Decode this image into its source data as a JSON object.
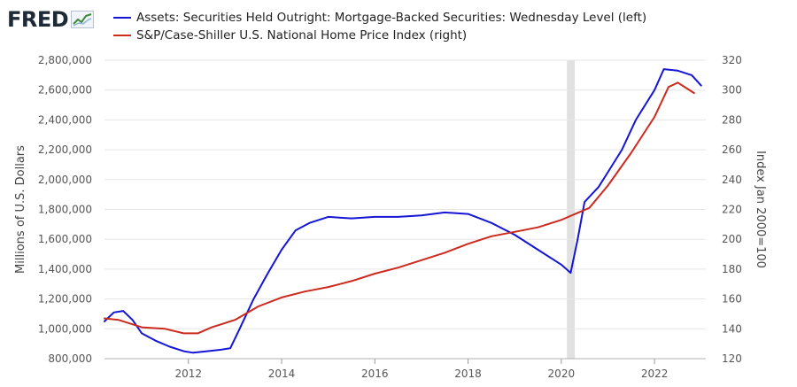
{
  "logo": {
    "text": "FRED",
    "icon": "chart-line-icon"
  },
  "chart_data": {
    "type": "line",
    "x_ticks": [
      "2012",
      "2014",
      "2016",
      "2018",
      "2020",
      "2022"
    ],
    "left_axis": {
      "label": "Millions of U.S. Dollars",
      "ylim": [
        800000,
        2800000
      ],
      "ticks": [
        "800,000",
        "1,000,000",
        "1,200,000",
        "1,400,000",
        "1,600,000",
        "1,800,000",
        "2,000,000",
        "2,200,000",
        "2,400,000",
        "2,600,000",
        "2,800,000"
      ]
    },
    "right_axis": {
      "label": "Index Jan 2000=100",
      "ylim": [
        120,
        320
      ],
      "ticks": [
        "120",
        "140",
        "160",
        "180",
        "200",
        "220",
        "240",
        "260",
        "280",
        "300",
        "320"
      ]
    },
    "xlim": [
      2010.2,
      2023.1
    ],
    "recession_shading": [
      2020.12,
      2020.29
    ],
    "grid": "horizontal",
    "series": [
      {
        "name": "Assets: Securities Held Outright: Mortgage-Backed Securities: Wednesday Level (left)",
        "axis": "left",
        "color": "#1515d6",
        "x": [
          2010.2,
          2010.4,
          2010.6,
          2010.8,
          2011.0,
          2011.3,
          2011.6,
          2011.9,
          2012.1,
          2012.4,
          2012.7,
          2012.9,
          2013.1,
          2013.4,
          2013.7,
          2014.0,
          2014.3,
          2014.6,
          2015.0,
          2015.5,
          2016.0,
          2016.5,
          2017.0,
          2017.5,
          2018.0,
          2018.5,
          2019.0,
          2019.5,
          2020.0,
          2020.2,
          2020.35,
          2020.5,
          2020.8,
          2021.0,
          2021.3,
          2021.6,
          2022.0,
          2022.2,
          2022.5,
          2022.8,
          2023.0
        ],
        "y": [
          1050000,
          1110000,
          1120000,
          1060000,
          970000,
          920000,
          880000,
          850000,
          840000,
          850000,
          860000,
          870000,
          1000000,
          1200000,
          1370000,
          1530000,
          1660000,
          1710000,
          1750000,
          1740000,
          1750000,
          1750000,
          1760000,
          1780000,
          1770000,
          1710000,
          1630000,
          1530000,
          1430000,
          1375000,
          1600000,
          1850000,
          1950000,
          2050000,
          2200000,
          2400000,
          2600000,
          2740000,
          2730000,
          2700000,
          2630000
        ]
      },
      {
        "name": "S&P/Case-Shiller U.S. National Home Price Index (right)",
        "axis": "right",
        "color": "#cc2a1e",
        "x": [
          2010.2,
          2010.5,
          2011.0,
          2011.5,
          2011.9,
          2012.2,
          2012.5,
          2013.0,
          2013.5,
          2014.0,
          2014.5,
          2015.0,
          2015.5,
          2016.0,
          2016.5,
          2017.0,
          2017.5,
          2018.0,
          2018.5,
          2019.0,
          2019.5,
          2020.0,
          2020.3,
          2020.6,
          2021.0,
          2021.5,
          2022.0,
          2022.3,
          2022.5,
          2022.7,
          2022.85
        ],
        "y": [
          147,
          146,
          141,
          140,
          137,
          137,
          141,
          146,
          155,
          161,
          165,
          168,
          172,
          177,
          181,
          186,
          191,
          197,
          202,
          205,
          208,
          213,
          217,
          221,
          236,
          258,
          282,
          302,
          305,
          301,
          298
        ]
      }
    ]
  }
}
